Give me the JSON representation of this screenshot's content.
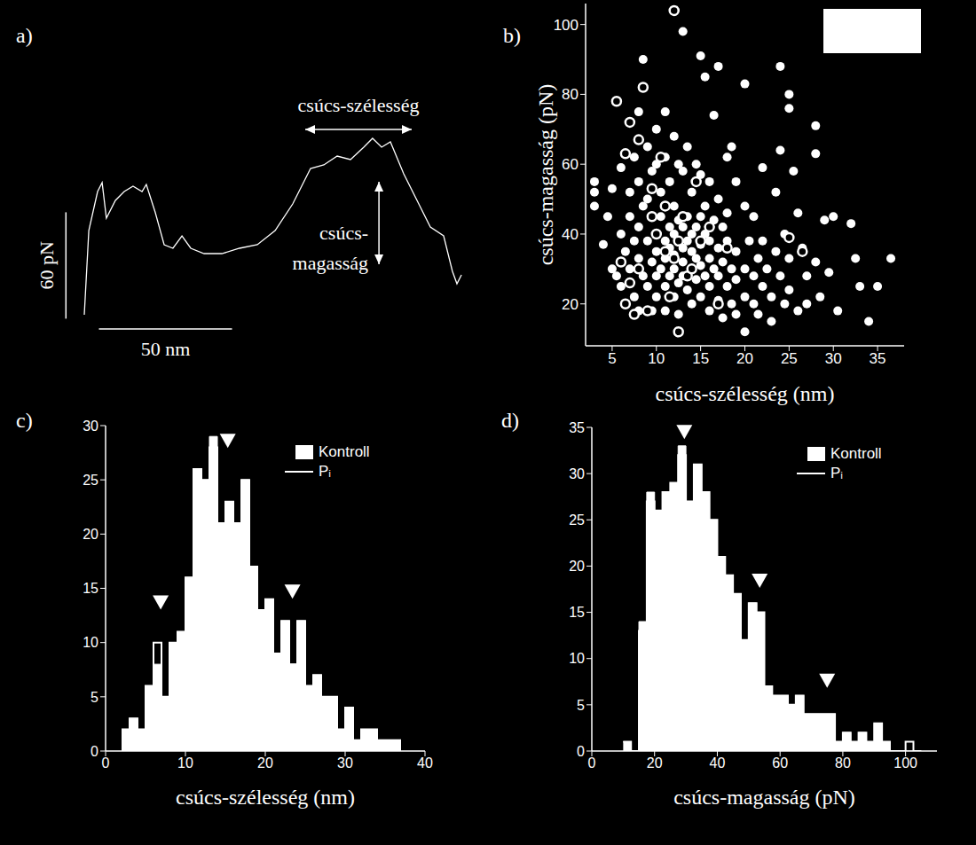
{
  "chart_data": [
    {
      "title": "a)",
      "type": "line",
      "color": "#ffffff",
      "tick_labels": false,
      "x": [
        0,
        1.7,
        5,
        6.7,
        8.3,
        11.7,
        15,
        18.3,
        21.7,
        23.3,
        26.7,
        30,
        33.3,
        36.7,
        40,
        45,
        51.7,
        58.3,
        65,
        71.7,
        78.3,
        85,
        90,
        95,
        100,
        105,
        108.3,
        111.7,
        115,
        120,
        125,
        130,
        135,
        138.3,
        140,
        141.7
      ],
      "values": [
        2.5,
        50,
        72,
        77,
        57,
        67,
        72,
        75,
        72,
        76,
        60,
        42,
        40,
        47,
        40,
        37,
        37,
        40,
        42,
        50,
        65,
        85,
        87,
        92,
        90,
        97,
        102,
        97,
        100,
        82,
        67,
        52,
        47,
        27,
        20,
        25
      ],
      "xlim": [
        -10,
        145
      ],
      "ylim": [
        -20,
        125
      ],
      "scale_bars": [
        {
          "axis": "y",
          "value": 60,
          "label": "60 pN"
        },
        {
          "axis": "x",
          "value": 50,
          "label": "50 nm"
        }
      ],
      "annotations": [
        {
          "text": "csúcs-szélesség",
          "x": [
            83,
            123
          ],
          "y": 107
        },
        {
          "text": [
            "csúcs-",
            "magasság"
          ],
          "x": 110.7,
          "y": [
            31,
            77.5
          ]
        }
      ]
    },
    {
      "title": "b)",
      "type": "scatter",
      "xlabel": "csúcs-szélesség (nm)",
      "ylabel": "csúcs-magasság (pN)",
      "xlim": [
        2,
        38
      ],
      "ylim": [
        8,
        106
      ],
      "xticks": [
        5,
        10,
        15,
        20,
        25,
        30,
        35
      ],
      "yticks": [
        20,
        40,
        60,
        80,
        100
      ],
      "series": [
        {
          "color": "#ffffff",
          "marker": "filled_circle",
          "x": [
            3,
            3,
            3,
            4,
            4.5,
            5,
            5,
            5.5,
            6,
            6,
            6,
            6.5,
            6.5,
            7,
            7,
            7,
            7.5,
            7.5,
            7.5,
            8,
            8,
            8,
            8,
            8,
            8.5,
            8.5,
            8.5,
            9,
            9,
            9,
            9,
            9.5,
            9.5,
            9.5,
            9.5,
            10,
            10,
            10,
            10,
            10,
            10,
            10.5,
            10.5,
            10.5,
            11,
            11,
            11,
            11,
            11,
            11,
            11.5,
            11.5,
            11.5,
            11.5,
            12,
            12,
            12,
            12,
            12,
            12,
            12.5,
            12.5,
            12.5,
            12.5,
            12.5,
            13,
            13,
            13,
            13,
            13,
            13,
            13.5,
            13.5,
            13.5,
            13.5,
            14,
            14,
            14,
            14,
            14,
            14.5,
            14.5,
            14.5,
            14.5,
            15,
            15,
            15,
            15,
            15,
            15,
            15.5,
            15.5,
            15.5,
            15.5,
            16,
            16,
            16,
            16,
            16,
            16.5,
            16.5,
            16.5,
            17,
            17,
            17,
            17,
            17,
            17.5,
            17.5,
            17.5,
            18,
            18,
            18,
            18,
            18.5,
            18.5,
            18.5,
            19,
            19,
            19,
            19,
            20,
            20,
            20,
            20,
            20,
            20.5,
            21,
            21,
            21,
            21.5,
            21.5,
            22,
            22,
            22,
            22.5,
            23,
            23,
            23.5,
            23.5,
            24,
            24,
            24,
            24.5,
            24.5,
            25,
            25,
            25,
            25,
            25.5,
            26,
            26,
            26.5,
            27,
            27,
            28,
            28,
            28,
            28.5,
            29,
            29.5,
            30,
            30.5,
            32,
            32.5,
            33,
            34,
            35,
            36.5
          ],
          "values": [
            55,
            52,
            48,
            37,
            45,
            53,
            30,
            28,
            25,
            40,
            59,
            35,
            20,
            52,
            45,
            30,
            62,
            38,
            22,
            75,
            55,
            42,
            33,
            18,
            90,
            48,
            28,
            65,
            50,
            38,
            25,
            58,
            45,
            32,
            18,
            70,
            60,
            40,
            35,
            28,
            22,
            52,
            45,
            30,
            75,
            62,
            38,
            33,
            25,
            18,
            55,
            42,
            36,
            28,
            68,
            48,
            40,
            34,
            30,
            22,
            60,
            44,
            38,
            26,
            17,
            98,
            58,
            42,
            36,
            32,
            28,
            65,
            45,
            38,
            24,
            52,
            40,
            35,
            30,
            20,
            60,
            42,
            33,
            27,
            91,
            57,
            45,
            37,
            31,
            22,
            85,
            48,
            40,
            28,
            55,
            38,
            33,
            25,
            18,
            74,
            44,
            30,
            88,
            50,
            36,
            28,
            21,
            42,
            32,
            16,
            62,
            46,
            38,
            25,
            65,
            30,
            20,
            55,
            35,
            27,
            17,
            83,
            48,
            30,
            22,
            12,
            38,
            45,
            28,
            20,
            33,
            17,
            59,
            38,
            25,
            30,
            22,
            15,
            52,
            35,
            88,
            64,
            28,
            40,
            20,
            80,
            76,
            33,
            24,
            58,
            46,
            18,
            36,
            28,
            20,
            71,
            63,
            32,
            22,
            44,
            29,
            45,
            18,
            43,
            33,
            25,
            15,
            25,
            33
          ]
        },
        {
          "color": "#ffffff",
          "marker": "open_circle",
          "x": [
            5.5,
            6,
            6.5,
            6.5,
            7,
            7,
            7.5,
            8,
            8,
            8.5,
            9,
            9.5,
            9.5,
            10,
            10.5,
            11,
            11,
            11.5,
            12,
            12,
            12.5,
            12.5,
            13,
            13.5,
            14,
            14.5,
            15,
            16,
            17,
            18,
            25,
            26.5
          ],
          "values": [
            78,
            32,
            63,
            20,
            72,
            26,
            17,
            30,
            67,
            82,
            18,
            45,
            53,
            40,
            62,
            35,
            48,
            22,
            104,
            33,
            12,
            38,
            45,
            28,
            30,
            55,
            38,
            42,
            20,
            36,
            39,
            35
          ]
        }
      ]
    },
    {
      "title": "c)",
      "type": "histogram",
      "xlabel": "csúcs-szélesség (nm)",
      "legend": "upper right",
      "bins": [
        2,
        3,
        4,
        5,
        6,
        7,
        8,
        9,
        10,
        11,
        12,
        13,
        14,
        15,
        16,
        17,
        18,
        19,
        20,
        21,
        22,
        23,
        24,
        25,
        26,
        27,
        28,
        29,
        30,
        31,
        32,
        33,
        34,
        35,
        36,
        37
      ],
      "series": [
        {
          "name": "Kontroll",
          "color": "#ffffff",
          "type": "bar",
          "values": [
            2,
            3,
            2,
            6,
            8,
            5,
            10,
            11,
            16,
            26,
            25,
            29,
            21,
            23,
            21,
            25,
            17,
            13,
            14,
            9,
            12,
            8,
            12,
            6,
            7,
            5,
            5,
            2,
            4,
            1,
            2,
            2,
            1,
            1,
            1
          ]
        },
        {
          "name": "Pᵢ",
          "color": "#ffffff",
          "type": "line",
          "values": [
            2,
            3,
            2,
            6,
            10,
            5,
            10,
            11,
            16,
            26,
            25,
            28,
            21,
            23,
            21,
            25,
            17,
            13,
            14,
            9,
            12,
            8,
            12,
            6,
            7,
            5,
            5,
            2,
            4,
            1,
            2,
            2,
            1,
            1,
            1
          ]
        }
      ],
      "xlim": [
        0,
        40
      ],
      "ylim": [
        0,
        30
      ],
      "xticks": [
        0,
        10,
        20,
        30,
        40
      ],
      "yticks": [
        0,
        5,
        10,
        15,
        20,
        25,
        30
      ],
      "markers": [
        {
          "x": 6.9,
          "y": 13.7
        },
        {
          "x": 15.3,
          "y": 28.6
        },
        {
          "x": 23.4,
          "y": 14.7
        }
      ]
    },
    {
      "title": "d)",
      "type": "histogram",
      "xlabel": "csúcs-magasság (pN)",
      "legend": "upper right",
      "bins": [
        10,
        12.5,
        15,
        17.5,
        20,
        22.5,
        25,
        27.5,
        30,
        32.5,
        35,
        37.5,
        40,
        42.5,
        45,
        47.5,
        50,
        52.5,
        55,
        57.5,
        60,
        62.5,
        65,
        67.5,
        70,
        72.5,
        75,
        77.5,
        80,
        82.5,
        85,
        87.5,
        90,
        92.5,
        95,
        97.5,
        100,
        102.5,
        105
      ],
      "series": [
        {
          "name": "Kontroll",
          "color": "#ffffff",
          "type": "bar",
          "values": [
            1,
            0,
            14,
            28,
            26,
            28,
            29,
            33,
            27,
            31,
            28,
            25,
            21,
            19,
            17,
            12,
            16,
            15,
            7,
            6,
            6,
            5,
            6,
            4,
            4,
            4,
            4,
            1,
            2,
            1,
            2,
            1,
            3,
            1,
            0,
            0,
            0,
            0
          ]
        },
        {
          "name": "Pᵢ",
          "color": "#ffffff",
          "type": "line",
          "values": [
            1,
            0,
            13,
            27,
            26,
            28,
            29,
            32,
            27,
            31,
            28,
            25,
            21,
            19,
            17,
            12,
            16,
            15,
            7,
            6,
            6,
            5,
            6,
            4,
            4,
            4,
            4,
            1,
            2,
            1,
            2,
            1,
            3,
            1,
            0,
            0,
            1,
            0
          ]
        }
      ],
      "xlim": [
        0,
        110
      ],
      "ylim": [
        0,
        35
      ],
      "xticks": [
        0,
        20,
        40,
        60,
        80,
        100
      ],
      "yticks": [
        0,
        5,
        10,
        15,
        20,
        25,
        30,
        35
      ],
      "markers": [
        {
          "x": 29.5,
          "y": 34.5
        },
        {
          "x": 53.5,
          "y": 18.4
        },
        {
          "x": 75,
          "y": 7.6
        }
      ]
    }
  ]
}
